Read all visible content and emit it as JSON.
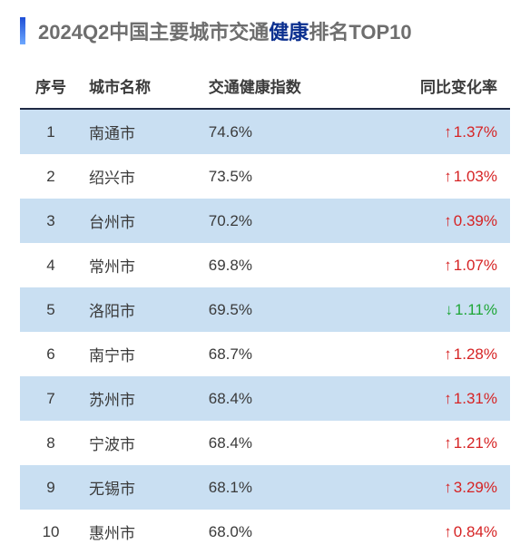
{
  "title_parts": {
    "prefix": "2024Q2中国主要城市交通",
    "highlight": "健康",
    "suffix": "排名TOP10"
  },
  "title_colors": {
    "normal": "#6e6e6e",
    "highlight": "#0b2f8f"
  },
  "columns": {
    "rank": "序号",
    "city": "城市名称",
    "index": "交通健康指数",
    "change": "同比变化率"
  },
  "header_border_color": "#1f2a44",
  "text_color": "#3a3a3a",
  "row_odd_bg": "#c9dff2",
  "row_even_bg": "#ffffff",
  "up_color": "#d62324",
  "down_color": "#1ea637",
  "up_symbol": "↑",
  "down_symbol": "↓",
  "rows": [
    {
      "rank": "1",
      "city": "南通市",
      "index": "74.6%",
      "dir": "up",
      "change": "1.37%"
    },
    {
      "rank": "2",
      "city": "绍兴市",
      "index": "73.5%",
      "dir": "up",
      "change": "1.03%"
    },
    {
      "rank": "3",
      "city": "台州市",
      "index": "70.2%",
      "dir": "up",
      "change": "0.39%"
    },
    {
      "rank": "4",
      "city": "常州市",
      "index": "69.8%",
      "dir": "up",
      "change": "1.07%"
    },
    {
      "rank": "5",
      "city": "洛阳市",
      "index": "69.5%",
      "dir": "down",
      "change": "1.11%"
    },
    {
      "rank": "6",
      "city": "南宁市",
      "index": "68.7%",
      "dir": "up",
      "change": "1.28%"
    },
    {
      "rank": "7",
      "city": "苏州市",
      "index": "68.4%",
      "dir": "up",
      "change": "1.31%"
    },
    {
      "rank": "8",
      "city": "宁波市",
      "index": "68.4%",
      "dir": "up",
      "change": "1.21%"
    },
    {
      "rank": "9",
      "city": "无锡市",
      "index": "68.1%",
      "dir": "up",
      "change": "3.29%"
    },
    {
      "rank": "10",
      "city": "惠州市",
      "index": "68.0%",
      "dir": "up",
      "change": "0.84%"
    }
  ]
}
